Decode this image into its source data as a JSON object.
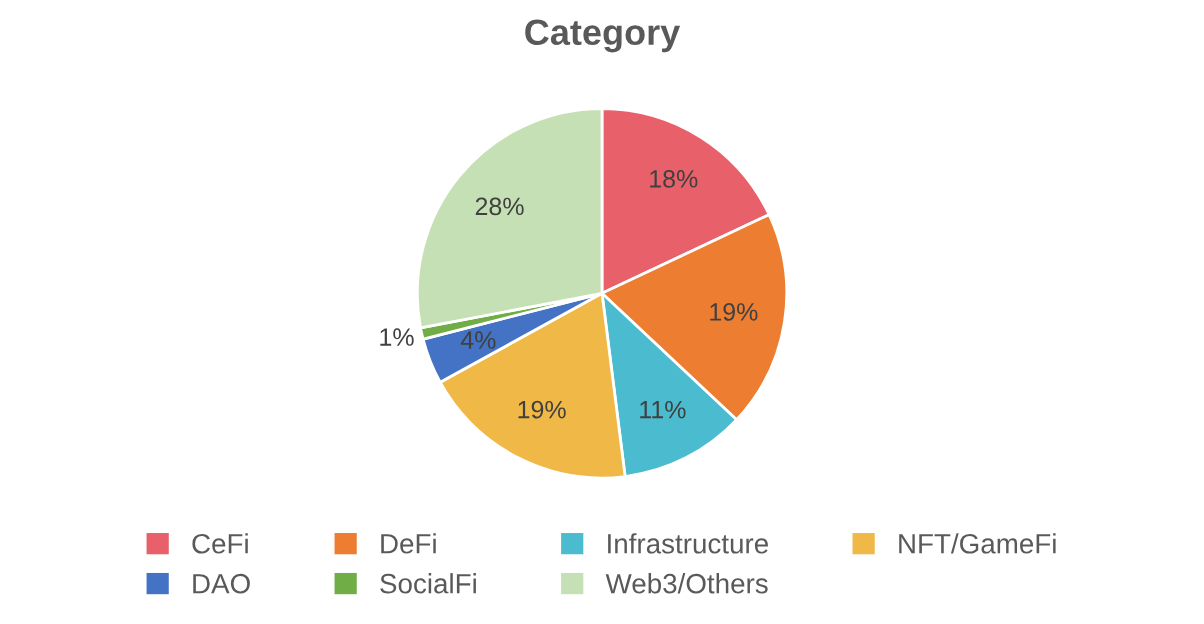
{
  "chart_data": {
    "type": "pie",
    "title": "Category",
    "categories": [
      "CeFi",
      "DeFi",
      "Infrastructure",
      "NFT/GameFi",
      "DAO",
      "SocialFi",
      "Web3/Others"
    ],
    "values": [
      18,
      19,
      11,
      19,
      4,
      1,
      28
    ],
    "colors": [
      "#e8606a",
      "#ed7d31",
      "#4bbcd0",
      "#f0b847",
      "#4472c4",
      "#70ad47",
      "#c5e0b4"
    ],
    "value_labels": [
      "18%",
      "19%",
      "11%",
      "19%",
      "4%",
      "1%",
      "28%"
    ],
    "legend": "bottom"
  }
}
